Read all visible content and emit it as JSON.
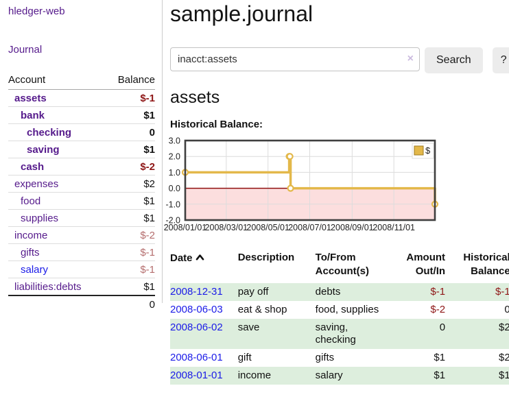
{
  "app": {
    "title": "hledger-web"
  },
  "sidebar": {
    "journal_label": "Journal",
    "table": {
      "headers": [
        "Account",
        "Balance"
      ],
      "rows": [
        {
          "account": "assets",
          "balance": "$-1",
          "depth": 1,
          "bold": true,
          "negative": true
        },
        {
          "account": "bank",
          "balance": "$1",
          "depth": 2,
          "bold": true,
          "negative": false
        },
        {
          "account": "checking",
          "balance": "0",
          "depth": 3,
          "bold": true,
          "negative": false
        },
        {
          "account": "saving",
          "balance": "$1",
          "depth": 3,
          "bold": true,
          "negative": false
        },
        {
          "account": "cash",
          "balance": "$-2",
          "depth": 2,
          "bold": true,
          "negative": true
        },
        {
          "account": "expenses",
          "balance": "$2",
          "depth": 1,
          "bold": false,
          "negative": false
        },
        {
          "account": "food",
          "balance": "$1",
          "depth": 2,
          "bold": false,
          "negative": false
        },
        {
          "account": "supplies",
          "balance": "$1",
          "depth": 2,
          "bold": false,
          "negative": false
        },
        {
          "account": "income",
          "balance": "$-2",
          "depth": 1,
          "bold": false,
          "negative": true
        },
        {
          "account": "gifts",
          "balance": "$-1",
          "depth": 2,
          "bold": false,
          "negative": true
        },
        {
          "account": "salary",
          "balance": "$-1",
          "depth": 2,
          "bold": false,
          "negative": true,
          "link_blue": true
        },
        {
          "account": "liabilities:debts",
          "balance": "$1",
          "depth": 1,
          "bold": false,
          "negative": false
        }
      ],
      "total": "0"
    }
  },
  "header": {
    "title": "sample.journal"
  },
  "search": {
    "value": "inacct:assets",
    "clear_icon": "×",
    "button_label": "Search",
    "help_label": "?"
  },
  "account_page": {
    "heading": "assets",
    "chart_label": "Historical Balance:"
  },
  "chart_data": {
    "type": "line",
    "step": true,
    "title": "Historical Balance",
    "legend": {
      "label": "$",
      "position": "ne"
    },
    "xlim": [
      0,
      365
    ],
    "ylim": [
      -2,
      3
    ],
    "x_ticks": [
      {
        "x": 0,
        "label": "2008/01/01"
      },
      {
        "x": 60,
        "label": "2008/03/01"
      },
      {
        "x": 121,
        "label": "2008/05/01"
      },
      {
        "x": 182,
        "label": "2008/07/01"
      },
      {
        "x": 244,
        "label": "2008/09/01"
      },
      {
        "x": 305,
        "label": "2008/11/01"
      }
    ],
    "y_ticks": [
      {
        "y": 3,
        "label": "3.0"
      },
      {
        "y": 2,
        "label": "2.0"
      },
      {
        "y": 1,
        "label": "1.0"
      },
      {
        "y": 0,
        "label": "0.0"
      },
      {
        "y": -1,
        "label": "-1.0"
      },
      {
        "y": -2,
        "label": "-2.0"
      }
    ],
    "series": [
      {
        "name": "$",
        "color": "#e3b84a",
        "marker_fill": "#ffffff",
        "points": [
          {
            "date": "2008-01-01",
            "x": 0,
            "y": 1
          },
          {
            "date": "2008-06-01",
            "x": 152,
            "y": 2
          },
          {
            "date": "2008-06-02",
            "x": 153,
            "y": 2
          },
          {
            "date": "2008-06-03",
            "x": 154,
            "y": 0
          },
          {
            "date": "2008-12-31",
            "x": 365,
            "y": -1
          }
        ]
      }
    ],
    "grid": true,
    "grid_color": "#dcdcdc",
    "border_color": "#3f3f3f",
    "zero_line_color": "#8f1010",
    "negative_region_color": "#fcdede",
    "legend_border_color": "#dddddd",
    "legend_square_border": "#9c7a20"
  },
  "register": {
    "headers": [
      {
        "label": "Date",
        "sorted_asc": true
      },
      {
        "label": "Description"
      },
      {
        "label": "To/From Account(s)"
      },
      {
        "label": "Amount Out/In",
        "align": "right"
      },
      {
        "label": "Historical Balance",
        "align": "right"
      }
    ],
    "rows": [
      {
        "date": "2008-12-31",
        "description": "pay off",
        "accounts": "debts",
        "amount": "$-1",
        "amount_negative": true,
        "balance": "$-1",
        "balance_negative": true
      },
      {
        "date": "2008-06-03",
        "description": "eat & shop",
        "accounts": "food, supplies",
        "amount": "$-2",
        "amount_negative": true,
        "balance": "0",
        "balance_negative": false
      },
      {
        "date": "2008-06-02",
        "description": "save",
        "accounts": "saving, checking",
        "amount": "0",
        "amount_negative": false,
        "balance": "$2",
        "balance_negative": false
      },
      {
        "date": "2008-06-01",
        "description": "gift",
        "accounts": "gifts",
        "amount": "$1",
        "amount_negative": false,
        "balance": "$2",
        "balance_negative": false
      },
      {
        "date": "2008-01-01",
        "description": "income",
        "accounts": "salary",
        "amount": "$1",
        "amount_negative": false,
        "balance": "$1",
        "balance_negative": false
      }
    ]
  }
}
